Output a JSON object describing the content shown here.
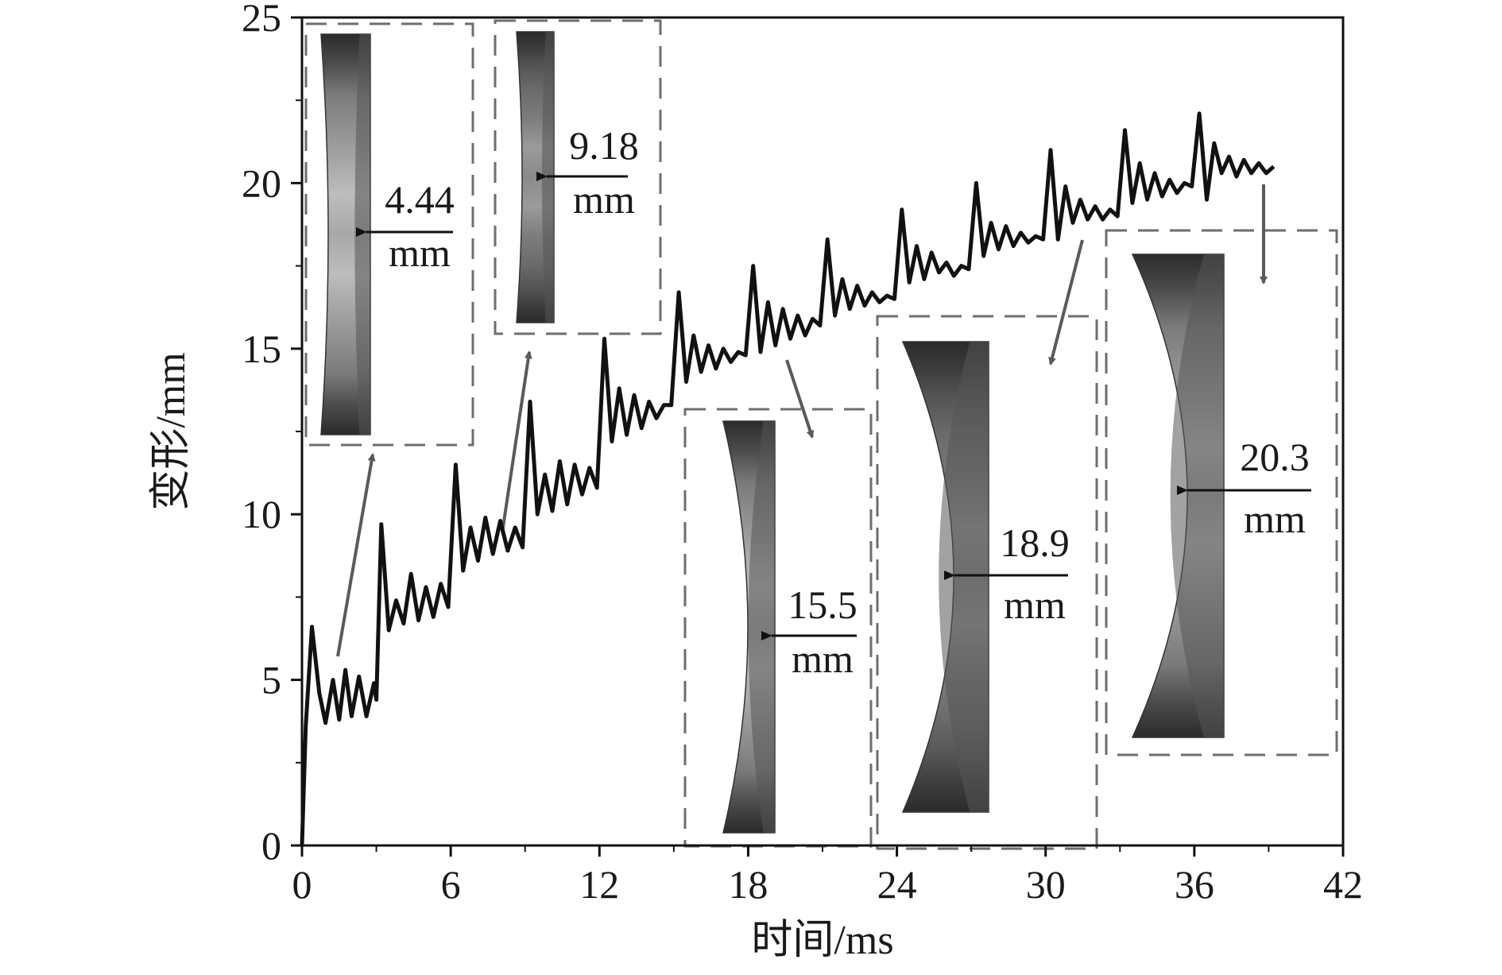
{
  "chart_data": {
    "type": "line",
    "xlabel": "时间/ms",
    "ylabel": "变形/mm",
    "xlim": [
      0,
      42
    ],
    "ylim": [
      0,
      25
    ],
    "xticks": [
      0,
      6,
      12,
      18,
      24,
      30,
      36,
      42
    ],
    "yticks": [
      0,
      5,
      10,
      15,
      20,
      25
    ],
    "grid": false,
    "legend": "none",
    "colors": {
      "line": "#111111",
      "arrow": "#5a5a5a",
      "frame": "#6e6e6e"
    },
    "series": [
      {
        "points": [
          [
            0.0,
            0.0
          ],
          [
            0.15,
            3.6
          ],
          [
            0.4,
            6.6
          ],
          [
            0.7,
            4.6
          ],
          [
            0.95,
            3.7
          ],
          [
            1.25,
            5.0
          ],
          [
            1.5,
            3.8
          ],
          [
            1.75,
            5.3
          ],
          [
            2.0,
            3.9
          ],
          [
            2.3,
            5.1
          ],
          [
            2.6,
            3.9
          ],
          [
            2.9,
            4.9
          ],
          [
            3.0,
            4.4
          ],
          [
            3.2,
            9.7
          ],
          [
            3.5,
            6.5
          ],
          [
            3.8,
            7.4
          ],
          [
            4.1,
            6.7
          ],
          [
            4.4,
            8.2
          ],
          [
            4.7,
            6.8
          ],
          [
            5.0,
            7.8
          ],
          [
            5.3,
            6.9
          ],
          [
            5.6,
            7.9
          ],
          [
            5.9,
            7.2
          ],
          [
            6.2,
            11.5
          ],
          [
            6.5,
            8.3
          ],
          [
            6.8,
            9.6
          ],
          [
            7.1,
            8.6
          ],
          [
            7.4,
            9.9
          ],
          [
            7.7,
            8.8
          ],
          [
            8.0,
            9.8
          ],
          [
            8.3,
            8.9
          ],
          [
            8.6,
            9.6
          ],
          [
            8.9,
            9.0
          ],
          [
            9.2,
            13.4
          ],
          [
            9.5,
            10.0
          ],
          [
            9.8,
            11.2
          ],
          [
            10.1,
            10.1
          ],
          [
            10.4,
            11.6
          ],
          [
            10.7,
            10.3
          ],
          [
            11.0,
            11.5
          ],
          [
            11.3,
            10.6
          ],
          [
            11.6,
            11.4
          ],
          [
            11.9,
            10.8
          ],
          [
            12.2,
            15.3
          ],
          [
            12.5,
            12.2
          ],
          [
            12.8,
            13.8
          ],
          [
            13.1,
            12.4
          ],
          [
            13.4,
            13.6
          ],
          [
            13.7,
            12.6
          ],
          [
            14.0,
            13.4
          ],
          [
            14.3,
            12.9
          ],
          [
            14.6,
            13.3
          ],
          [
            14.9,
            13.3
          ],
          [
            15.2,
            16.7
          ],
          [
            15.5,
            14.0
          ],
          [
            15.8,
            15.4
          ],
          [
            16.1,
            14.3
          ],
          [
            16.4,
            15.1
          ],
          [
            16.7,
            14.4
          ],
          [
            17.0,
            15.0
          ],
          [
            17.3,
            14.6
          ],
          [
            17.6,
            14.9
          ],
          [
            17.9,
            14.8
          ],
          [
            18.2,
            17.5
          ],
          [
            18.5,
            14.9
          ],
          [
            18.8,
            16.4
          ],
          [
            19.1,
            15.1
          ],
          [
            19.4,
            16.2
          ],
          [
            19.7,
            15.3
          ],
          [
            20.0,
            16.0
          ],
          [
            20.3,
            15.4
          ],
          [
            20.6,
            15.9
          ],
          [
            20.9,
            15.7
          ],
          [
            21.2,
            18.3
          ],
          [
            21.5,
            16.0
          ],
          [
            21.8,
            17.1
          ],
          [
            22.1,
            16.2
          ],
          [
            22.4,
            16.9
          ],
          [
            22.7,
            16.3
          ],
          [
            23.0,
            16.7
          ],
          [
            23.3,
            16.4
          ],
          [
            23.6,
            16.6
          ],
          [
            23.9,
            16.5
          ],
          [
            24.2,
            19.2
          ],
          [
            24.5,
            17.0
          ],
          [
            24.8,
            18.1
          ],
          [
            25.1,
            17.1
          ],
          [
            25.4,
            17.9
          ],
          [
            25.7,
            17.3
          ],
          [
            26.0,
            17.6
          ],
          [
            26.3,
            17.2
          ],
          [
            26.6,
            17.5
          ],
          [
            26.9,
            17.4
          ],
          [
            27.2,
            20.0
          ],
          [
            27.5,
            17.8
          ],
          [
            27.8,
            18.8
          ],
          [
            28.1,
            18.0
          ],
          [
            28.4,
            18.7
          ],
          [
            28.7,
            18.1
          ],
          [
            29.0,
            18.5
          ],
          [
            29.3,
            18.2
          ],
          [
            29.6,
            18.4
          ],
          [
            29.9,
            18.3
          ],
          [
            30.2,
            21.0
          ],
          [
            30.5,
            18.3
          ],
          [
            30.8,
            19.9
          ],
          [
            31.1,
            18.8
          ],
          [
            31.4,
            19.5
          ],
          [
            31.7,
            18.9
          ],
          [
            32.0,
            19.3
          ],
          [
            32.3,
            18.9
          ],
          [
            32.6,
            19.2
          ],
          [
            32.9,
            19.0
          ],
          [
            33.2,
            21.6
          ],
          [
            33.5,
            19.4
          ],
          [
            33.8,
            20.6
          ],
          [
            34.1,
            19.5
          ],
          [
            34.4,
            20.3
          ],
          [
            34.7,
            19.6
          ],
          [
            35.0,
            20.1
          ],
          [
            35.3,
            19.7
          ],
          [
            35.6,
            20.0
          ],
          [
            35.9,
            19.9
          ],
          [
            36.2,
            22.1
          ],
          [
            36.5,
            19.5
          ],
          [
            36.8,
            21.2
          ],
          [
            37.1,
            20.3
          ],
          [
            37.4,
            20.8
          ],
          [
            37.7,
            20.2
          ],
          [
            38.0,
            20.7
          ],
          [
            38.3,
            20.3
          ],
          [
            38.6,
            20.6
          ],
          [
            38.9,
            20.3
          ],
          [
            39.2,
            20.5
          ]
        ]
      }
    ],
    "insets": [
      {
        "value": "4.44",
        "unit": "mm"
      },
      {
        "value": "9.18",
        "unit": "mm"
      },
      {
        "value": "15.5",
        "unit": "mm"
      },
      {
        "value": "18.9",
        "unit": "mm"
      },
      {
        "value": "20.3",
        "unit": "mm"
      }
    ]
  }
}
